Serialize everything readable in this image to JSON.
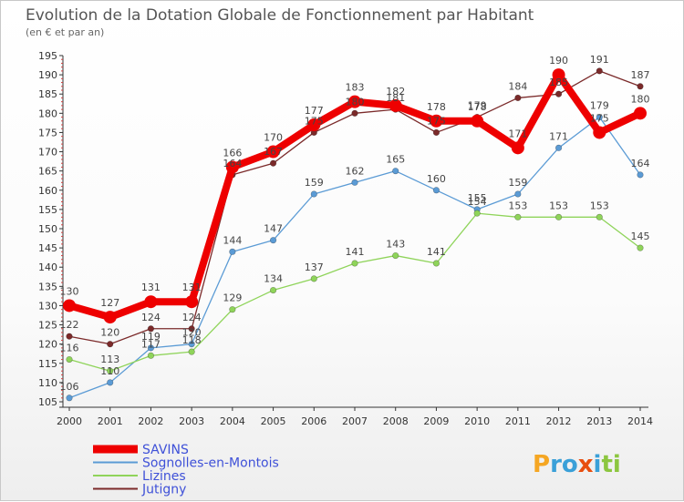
{
  "chart_data": {
    "type": "line",
    "title": "Evolution de la Dotation Globale de Fonctionnement par Habitant",
    "subtitle": "(en € et par an)",
    "xlabel": "",
    "ylabel": "",
    "ylim": [
      105,
      195
    ],
    "y_ticks": [
      105,
      110,
      115,
      120,
      125,
      130,
      135,
      140,
      145,
      150,
      155,
      160,
      165,
      170,
      175,
      180,
      185,
      190,
      195
    ],
    "categories": [
      "2000",
      "2001",
      "2002",
      "2003",
      "2004",
      "2005",
      "2006",
      "2007",
      "2008",
      "2009",
      "2010",
      "2011",
      "2012",
      "2013",
      "2014"
    ],
    "series": [
      {
        "name": "SAVINS",
        "color": "#ee0000",
        "values": [
          130,
          127,
          131,
          131,
          166,
          170,
          177,
          183,
          182,
          178,
          178,
          171,
          190,
          175,
          180
        ]
      },
      {
        "name": "Sognolles-en-Montois",
        "color": "#5b9bd5",
        "values": [
          106,
          110,
          119,
          120,
          144,
          147,
          159,
          162,
          165,
          160,
          155,
          159,
          171,
          179,
          164
        ]
      },
      {
        "name": "Lizines",
        "color": "#8fd45a",
        "values": [
          116,
          113,
          117,
          118,
          129,
          134,
          137,
          141,
          143,
          141,
          154,
          153,
          153,
          153,
          145
        ]
      },
      {
        "name": "Jutigny",
        "color": "#7b2a2a",
        "values": [
          122,
          120,
          124,
          124,
          164,
          167,
          175,
          180,
          181,
          175,
          179,
          184,
          185,
          191,
          187
        ]
      }
    ],
    "legend_position": "bottom-left",
    "grid": false
  },
  "brand": {
    "letters": [
      "P",
      "r",
      "o",
      "x",
      "i",
      "t",
      "i"
    ],
    "colors": [
      "#f5a623",
      "#3aa0d8",
      "#3aa0d8",
      "#e84e0f",
      "#3aa0d8",
      "#8cc63f",
      "#8cc63f"
    ]
  }
}
